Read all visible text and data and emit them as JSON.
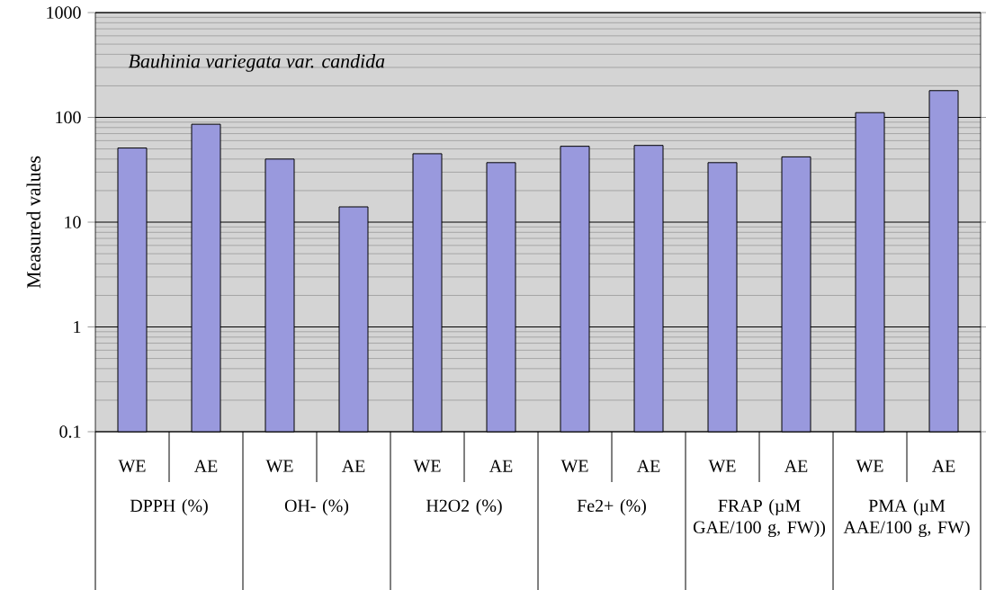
{
  "chart_data": {
    "type": "bar",
    "title": "*Bauhinia variegata var. candida*",
    "ylabel": "Measured values",
    "categories": [
      "WE",
      "AE",
      "WE",
      "AE",
      "WE",
      "AE",
      "WE",
      "AE",
      "WE",
      "AE",
      "WE",
      "AE"
    ],
    "values": [
      51,
      86,
      40,
      14,
      45,
      37,
      53,
      54,
      37,
      42,
      111,
      180
    ],
    "color": "#9999dd",
    "log": true,
    "ylim": [
      0.1,
      1000
    ],
    "yticks": [
      0.1,
      1,
      10,
      100,
      1000
    ],
    "grid": "y",
    "annotations": [
      "DPPH (%)",
      "OH- (%)",
      "H2O2 (%)",
      "Fe2+ (%)",
      "FRAP (µM GAE/100 g, FW))",
      "PMA (µM AAE/100 g, FW)"
    ]
  }
}
